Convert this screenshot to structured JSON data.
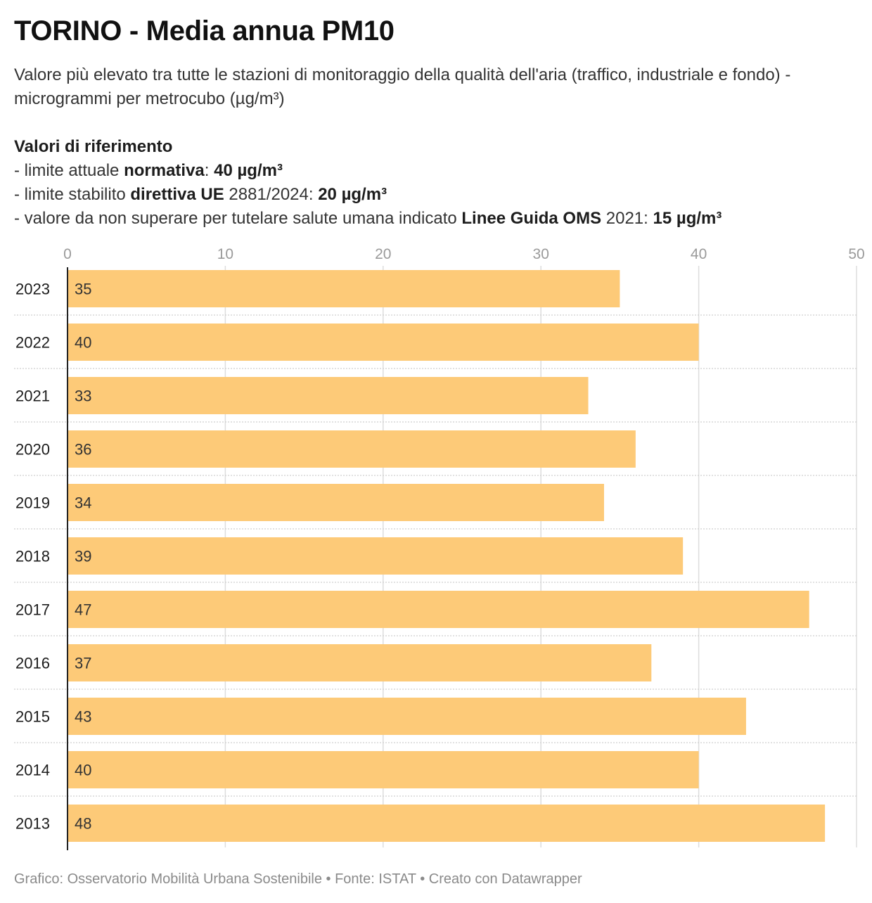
{
  "header": {
    "title": "TORINO - Media annua PM10",
    "subtitle": "Valore più elevato tra tutte le stazioni di monitoraggio della qualità dell'aria (traffico, industriale e fondo) - microgrammi per metrocubo (µg/m³)"
  },
  "reference": {
    "heading": "Valori di riferimento",
    "line1": {
      "prefix": "- limite attuale ",
      "bold_label": "normativa",
      "mid": ": ",
      "value": "40 µg/m³"
    },
    "line2": {
      "prefix": "- limite stabilito ",
      "bold_label": "direttiva UE",
      "mid": " 2881/2024: ",
      "value": "20 µg/m³"
    },
    "line3": {
      "prefix": "- valore da non superare per tutelare salute umana indicato ",
      "bold_label": "Linee Guida OMS",
      "mid": " 2021: ",
      "value": "15 µg/m³"
    }
  },
  "footer": {
    "credit": "Grafico: Osservatorio Mobilità Urbana Sostenibile • Fonte: ISTAT • Creato con Datawrapper"
  },
  "colors": {
    "bar": "#fdca78",
    "grid": "#dddddd",
    "axis": "#222222",
    "tick_label": "#9a9a9a",
    "text": "#1d1d1d"
  },
  "chart_data": {
    "type": "bar",
    "orientation": "horizontal",
    "categories": [
      "2023",
      "2022",
      "2021",
      "2020",
      "2019",
      "2018",
      "2017",
      "2016",
      "2015",
      "2014",
      "2013"
    ],
    "values": [
      35,
      40,
      33,
      36,
      34,
      39,
      47,
      37,
      43,
      40,
      48
    ],
    "value_labels": [
      "35",
      "40",
      "33",
      "36",
      "34",
      "39",
      "47",
      "37",
      "43",
      "40",
      "48"
    ],
    "xlim": [
      0,
      50
    ],
    "xticks": [
      0,
      10,
      20,
      30,
      40,
      50
    ],
    "xtick_labels": [
      "0",
      "10",
      "20",
      "30",
      "40",
      "50"
    ],
    "xaxis_position": "top",
    "grid": true,
    "legend": false,
    "xlabel": "",
    "ylabel": ""
  }
}
